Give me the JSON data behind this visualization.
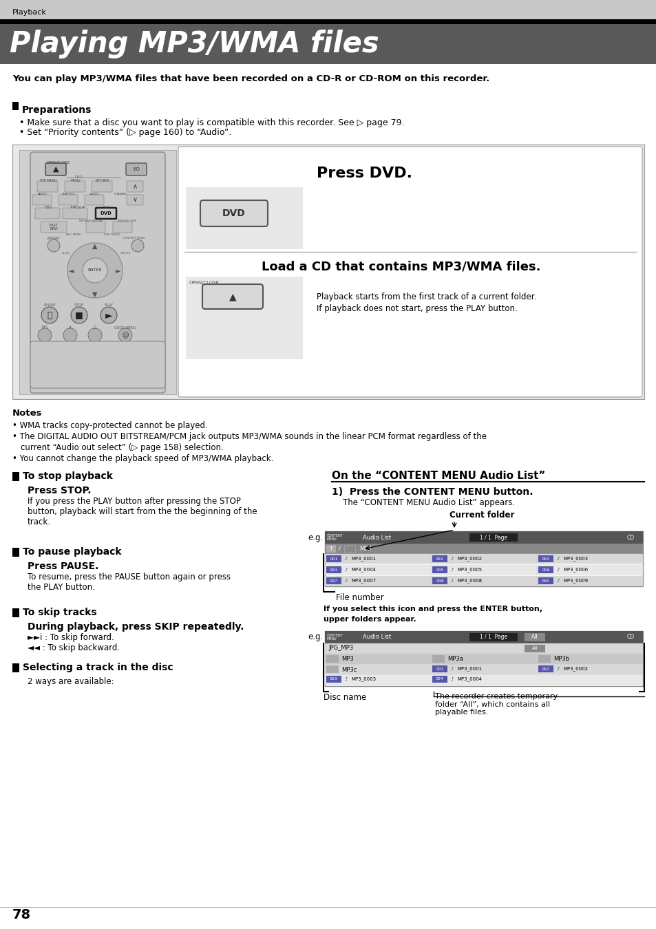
{
  "page_bg": "#ffffff",
  "header_bg": "#c8c8c8",
  "title_banner_bg": "#595959",
  "header_text": "Playback",
  "title_text": "Playing MP3/WMA files",
  "subtitle_text": "You can play MP3/WMA files that have been recorded on a CD-R or CD-ROM on this recorder.",
  "prep_header": "Preparations",
  "prep_bullets": [
    "Make sure that a disc you want to play is compatible with this recorder. See ▷ page 79.",
    "Set “Priority contents” (▷ page 160) to “Audio”."
  ],
  "press_dvd_text": "Press DVD.",
  "load_cd_text": "Load a CD that contains MP3/WMA files.",
  "playback_note1": "Playback starts from the first track of a current folder.",
  "playback_note2": "If playback does not start, press the PLAY button.",
  "notes_header": "Notes",
  "notes": [
    "WMA tracks copy-protected cannot be played.",
    "The DIGITAL AUDIO OUT BITSTREAM/PCM jack outputs MP3/WMA sounds in the linear PCM format regardless of the",
    "current “Audio out select” (▷ page 158) selection.",
    "You cannot change the playback speed of MP3/WMA playback."
  ],
  "section1_header": "To stop playback",
  "section1_sub": "Press STOP.",
  "section1_body": [
    "If you press the PLAY button after pressing the STOP",
    "button, playback will start from the the beginning of the",
    "track."
  ],
  "section2_header": "To pause playback",
  "section2_sub": "Press PAUSE.",
  "section2_body": [
    "To resume, press the PAUSE button again or press",
    "the PLAY button."
  ],
  "section3_header": "To skip tracks",
  "section3_sub": "During playback, press SKIP repeatedly.",
  "section3_body1": "►►i : To skip forward.",
  "section3_body2": "◄◄ : To skip backward.",
  "section4_header": "Selecting a track in the disc",
  "section4_body": "2 ways are available:",
  "right_header": "On the “CONTENT MENU Audio List”",
  "right_step1": "1)  Press the CONTENT MENU button.",
  "right_step1_body": "The “CONTENT MENU Audio List” appears.",
  "current_folder_label": "Current folder",
  "file_number_label": "File number",
  "file_number_note1": "If you select this icon and press the ENTER button,",
  "file_number_note2": "upper folders appear.",
  "disc_name_label": "Disc name",
  "disc_name_note": "The recorder creates temporary\nfolder “All”, which contains all\nplayable files.",
  "page_number": "78"
}
